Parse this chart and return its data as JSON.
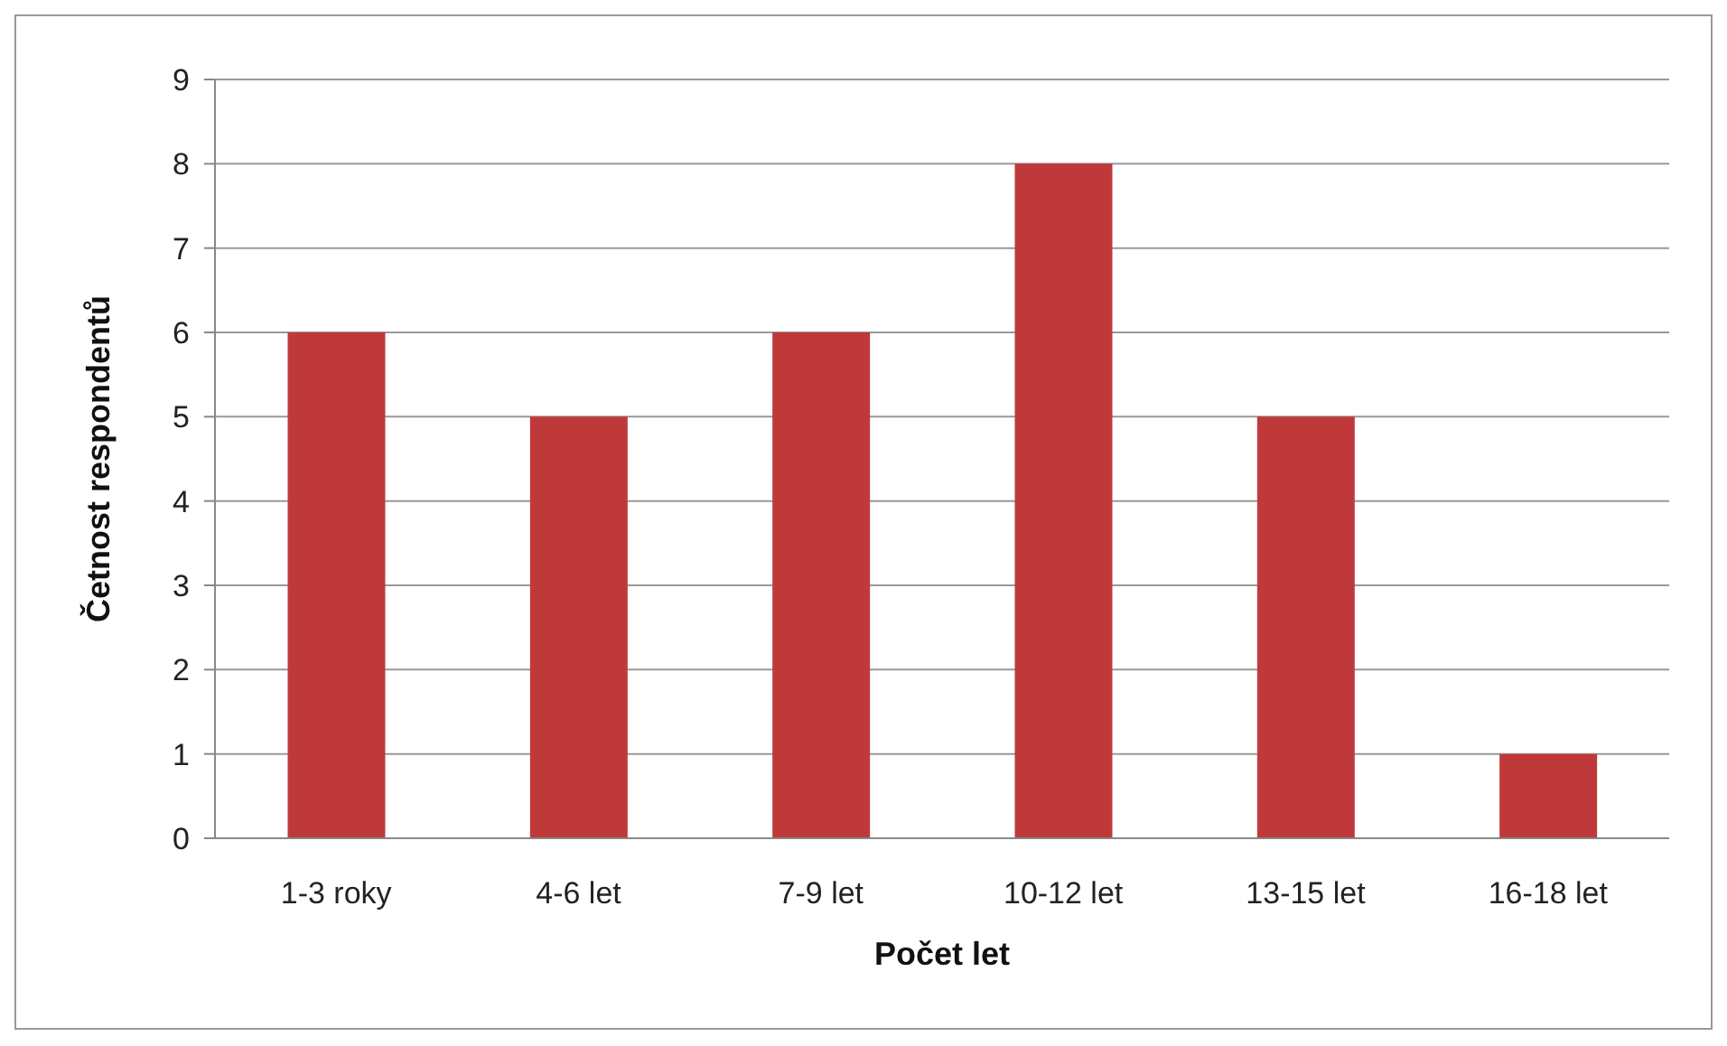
{
  "chart_data": {
    "type": "bar",
    "xlabel": "Počet let",
    "ylabel": "Četnost respondentů",
    "categories": [
      "1-3 roky",
      "4-6 let",
      "7-9 let",
      "10-12 let",
      "13-15 let",
      "16-18 let"
    ],
    "values": [
      6,
      5,
      6,
      8,
      5,
      1
    ],
    "color": "#c0393a",
    "ylim": [
      0,
      9
    ],
    "yticks": [
      0,
      1,
      2,
      3,
      4,
      5,
      6,
      7,
      8,
      9
    ],
    "grid": "y"
  }
}
